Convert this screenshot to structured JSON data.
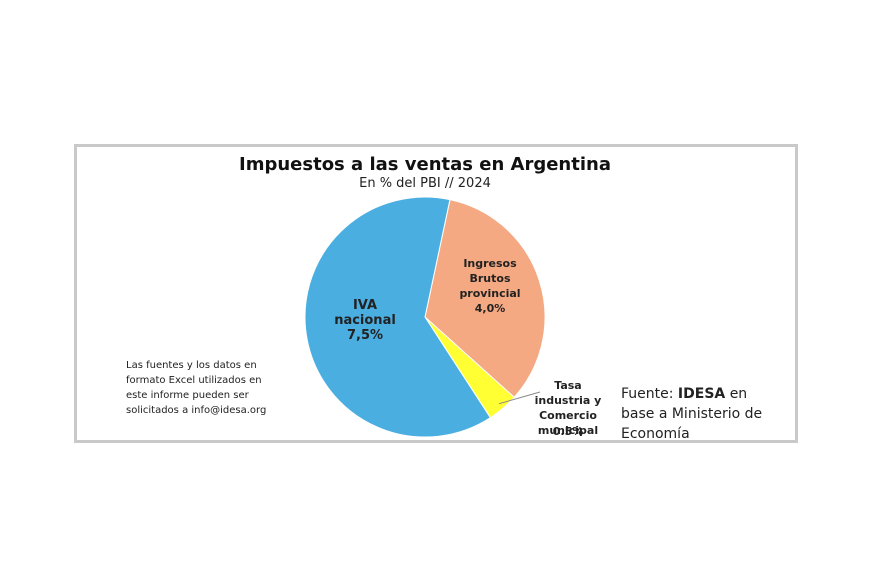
{
  "chart_data": {
    "type": "pie",
    "title": "Impuestos a las ventas en Argentina",
    "subtitle": "En % del PBI // 2024",
    "categories": [
      "Ingresos Brutos provincial",
      "Tasa industria y Comercio municipal",
      "IVA nacional"
    ],
    "values": [
      4.0,
      0.5,
      7.5
    ],
    "value_labels": [
      "4,0%",
      "0.5%",
      "7,5%"
    ],
    "colors": [
      "#f4a982",
      "#ffff33",
      "#4aaee0"
    ],
    "note": "Las fuentes y los datos en formato Excel utilizados en este informe pueden ser solicitados a info@idesa.org",
    "source_prefix": "Fuente:",
    "source_org": "IDESA",
    "source_rest": "en base a Ministerio de Economía"
  }
}
